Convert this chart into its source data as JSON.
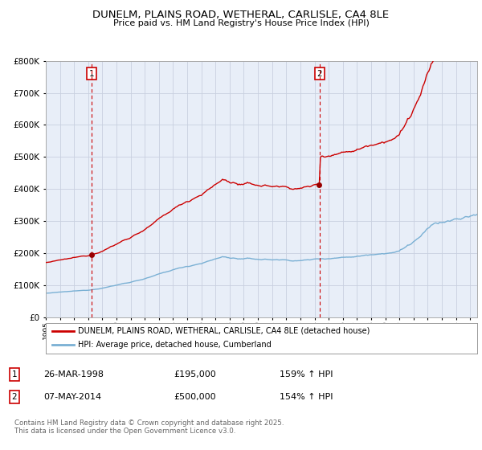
{
  "title": "DUNELM, PLAINS ROAD, WETHERAL, CARLISLE, CA4 8LE",
  "subtitle": "Price paid vs. HM Land Registry's House Price Index (HPI)",
  "legend_line1": "DUNELM, PLAINS ROAD, WETHERAL, CARLISLE, CA4 8LE (detached house)",
  "legend_line2": "HPI: Average price, detached house, Cumberland",
  "sale1_date": "26-MAR-1998",
  "sale1_price": "£195,000",
  "sale1_hpi": "159% ↑ HPI",
  "sale2_date": "07-MAY-2014",
  "sale2_price": "£500,000",
  "sale2_hpi": "154% ↑ HPI",
  "sale1_year": 1998.23,
  "sale2_year": 2014.37,
  "sale1_value": 195000,
  "sale2_value": 500000,
  "footer": "Contains HM Land Registry data © Crown copyright and database right 2025.\nThis data is licensed under the Open Government Licence v3.0.",
  "line1_color": "#cc0000",
  "line2_color": "#7ab0d4",
  "grid_color": "#c8d0e0",
  "vline_color": "#cc0000",
  "plot_bg": "#e8eef8",
  "ylim_max": 800000,
  "xlim_min": 1995,
  "xlim_max": 2025.5
}
